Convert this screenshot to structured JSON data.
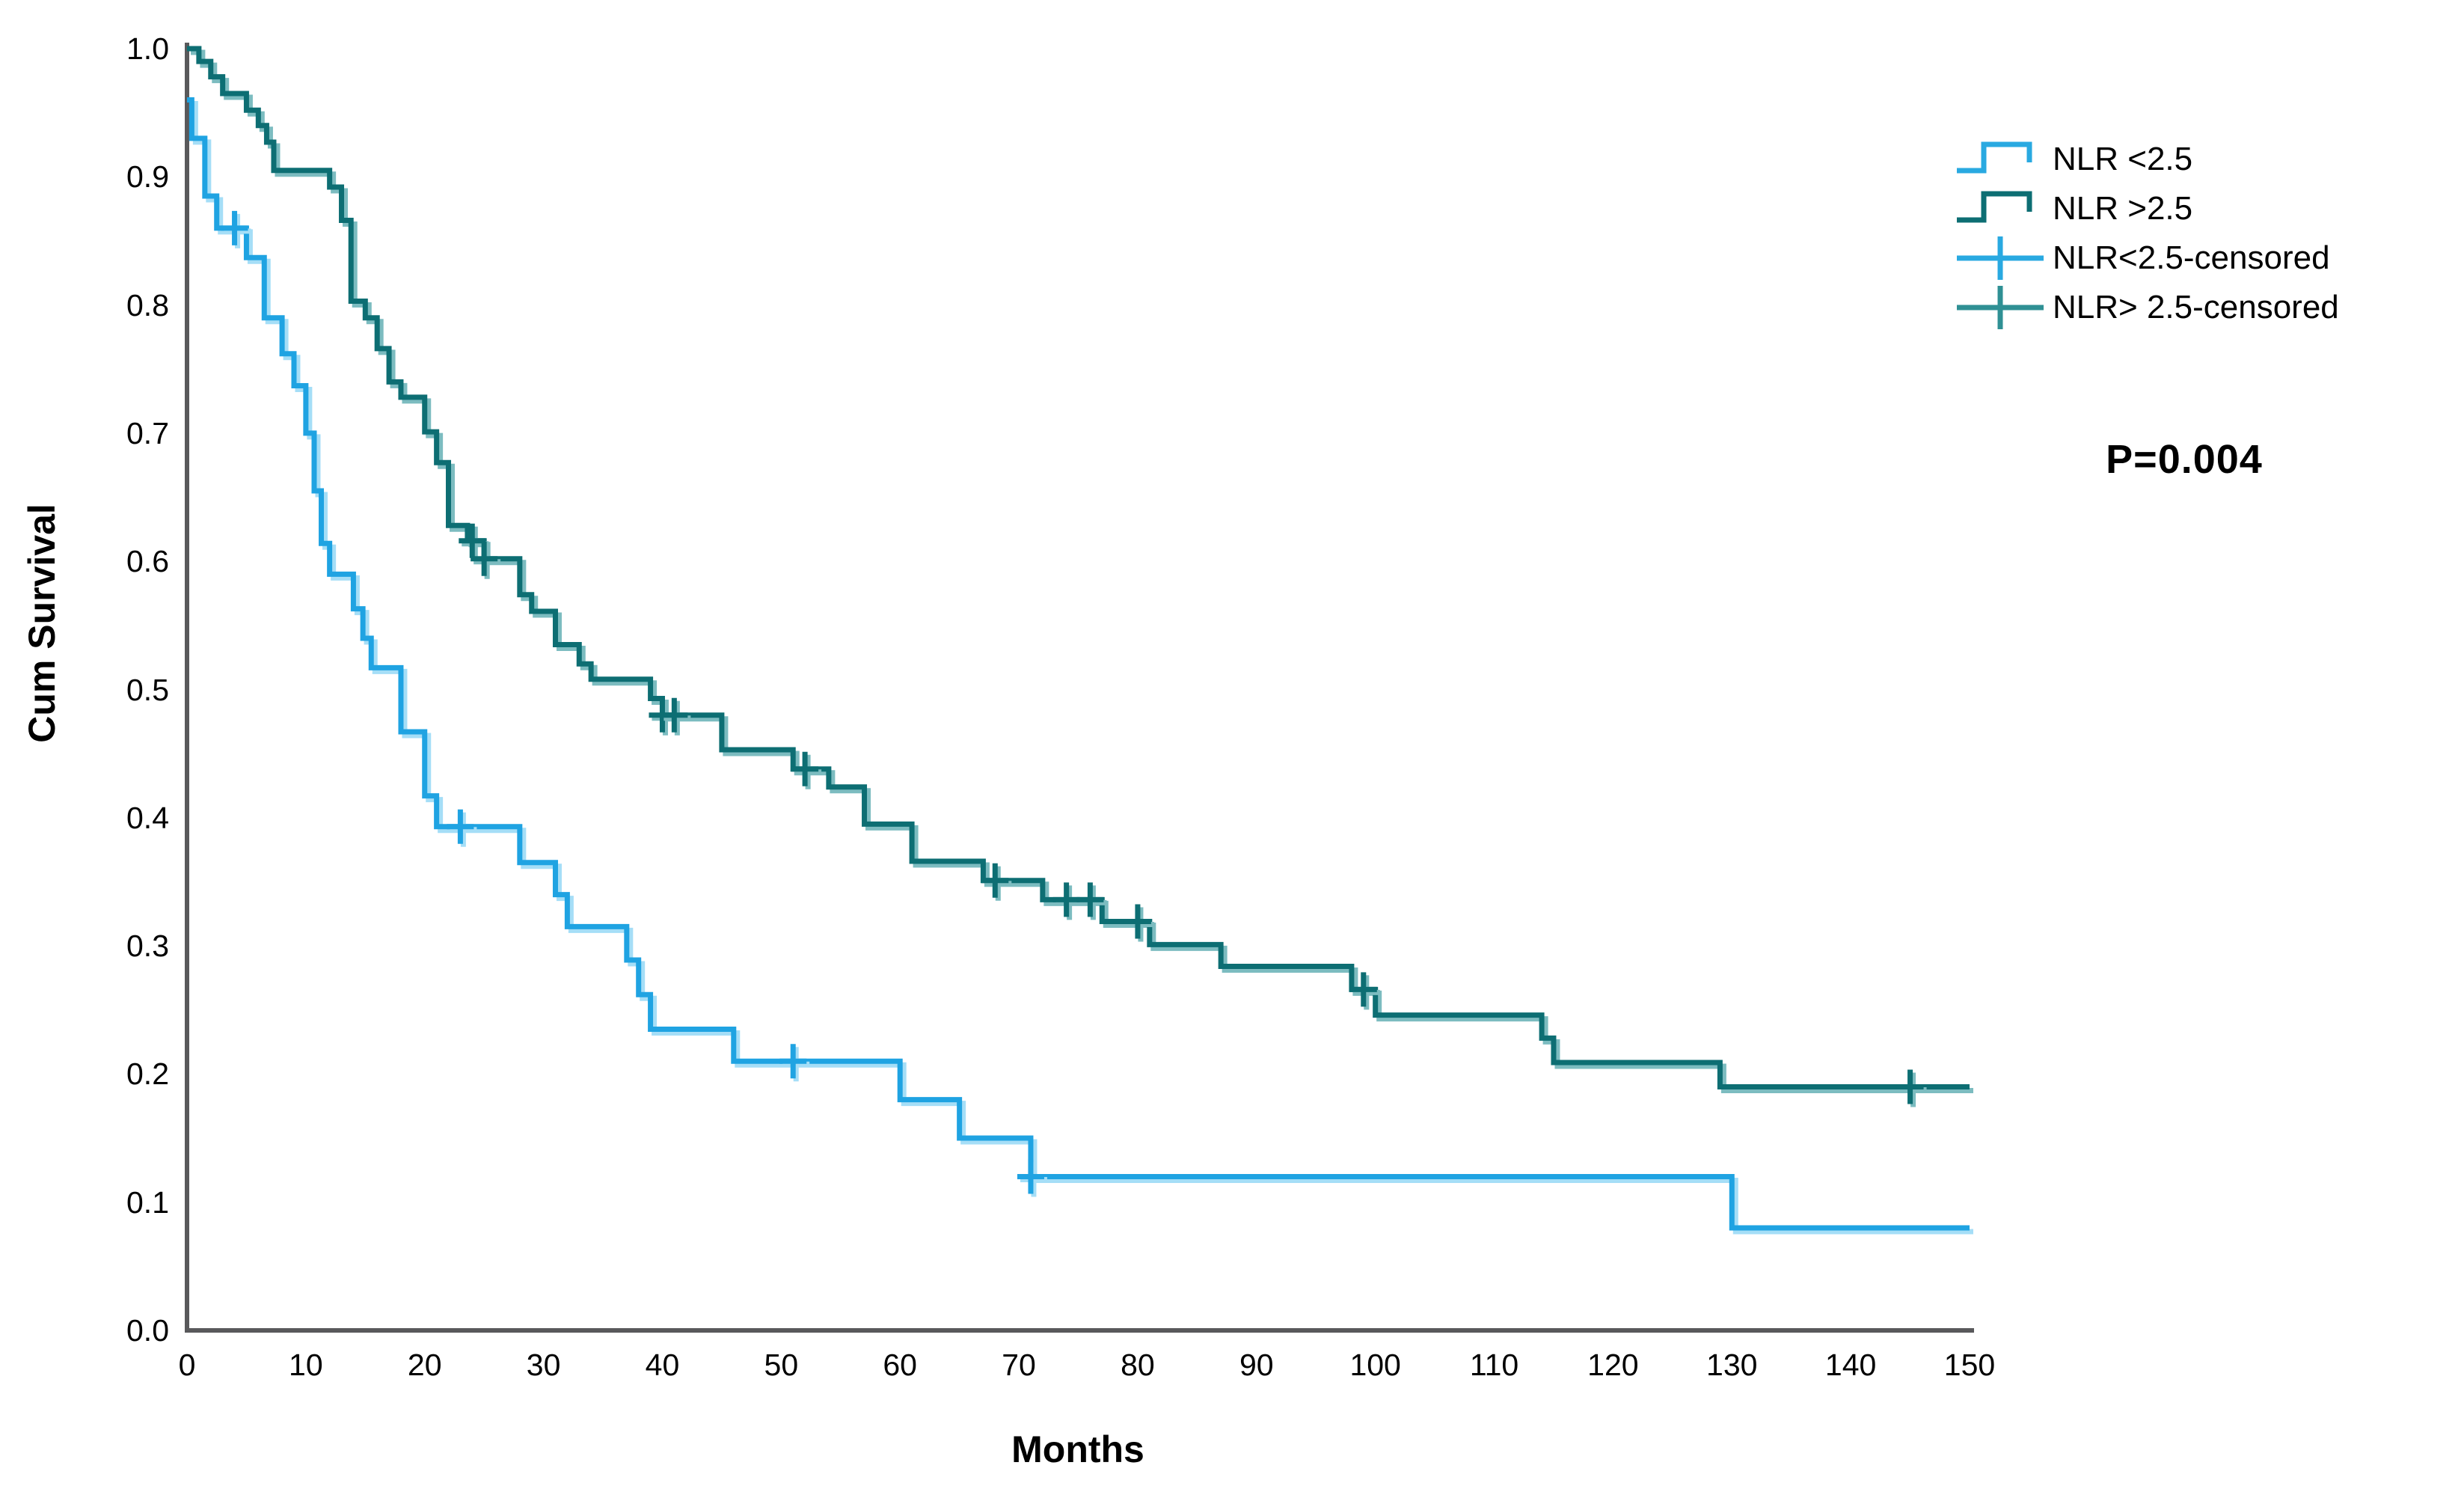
{
  "colors": {
    "axis": "#59595b",
    "text": "#000000",
    "background": "#ffffff"
  },
  "chart_data": {
    "type": "line",
    "subtype": "kaplan-meier-step",
    "title": "",
    "xlabel": "Months",
    "ylabel": "Cum Survival",
    "xlim": [
      0,
      150
    ],
    "ylim": [
      0.0,
      1.0
    ],
    "x_ticks": [
      0,
      10,
      20,
      30,
      40,
      50,
      60,
      70,
      80,
      90,
      100,
      110,
      120,
      130,
      140,
      150
    ],
    "y_ticks": [
      0.0,
      0.1,
      0.2,
      0.3,
      0.4,
      0.5,
      0.6,
      0.7,
      0.8,
      0.9,
      1.0
    ],
    "grid": false,
    "legend_position": "top-right",
    "annotation": "P=0.004",
    "legend_entries": [
      "NLR <2.5",
      "NLR >2.5",
      "NLR<2.5-censored",
      "NLR> 2.5-censored"
    ],
    "legend_sample_colors": [
      "#29a9e1",
      "#0d6e73",
      "#29a9e1",
      "#2f9094"
    ],
    "series": [
      {
        "name": "NLR <2.5",
        "color": "#1fa3e2",
        "halo": "#a5def7",
        "step_points": [
          [
            0,
            0.96
          ],
          [
            0.4,
            0.93
          ],
          [
            1.5,
            0.885
          ],
          [
            2.5,
            0.86
          ],
          [
            5,
            0.837
          ],
          [
            6.5,
            0.79
          ],
          [
            8,
            0.762
          ],
          [
            9,
            0.737
          ],
          [
            10,
            0.7
          ],
          [
            10.7,
            0.655
          ],
          [
            11.3,
            0.614
          ],
          [
            12,
            0.59
          ],
          [
            14,
            0.563
          ],
          [
            14.8,
            0.54
          ],
          [
            15.5,
            0.517
          ],
          [
            18,
            0.467
          ],
          [
            20,
            0.417
          ],
          [
            21,
            0.393
          ],
          [
            28,
            0.365
          ],
          [
            31,
            0.34
          ],
          [
            32,
            0.315
          ],
          [
            37,
            0.289
          ],
          [
            38,
            0.262
          ],
          [
            39,
            0.235
          ],
          [
            46,
            0.21
          ],
          [
            60,
            0.18
          ],
          [
            65,
            0.15
          ],
          [
            71,
            0.12
          ],
          [
            130,
            0.08
          ]
        ],
        "censored": [
          [
            4,
            0.86
          ],
          [
            23,
            0.393
          ],
          [
            51,
            0.21
          ],
          [
            71,
            0.12
          ]
        ]
      },
      {
        "name": "NLR >2.5",
        "color": "#0d6e73",
        "halo": "#7cbcc0",
        "step_points": [
          [
            0,
            1.0
          ],
          [
            1,
            0.99
          ],
          [
            2,
            0.978
          ],
          [
            3,
            0.965
          ],
          [
            5,
            0.952
          ],
          [
            6,
            0.94
          ],
          [
            6.7,
            0.927
          ],
          [
            7.3,
            0.905
          ],
          [
            12,
            0.892
          ],
          [
            13,
            0.866
          ],
          [
            13.8,
            0.803
          ],
          [
            15,
            0.79
          ],
          [
            16,
            0.766
          ],
          [
            17,
            0.74
          ],
          [
            18,
            0.728
          ],
          [
            20,
            0.701
          ],
          [
            21,
            0.677
          ],
          [
            22,
            0.628
          ],
          [
            23.6,
            0.616
          ],
          [
            25,
            0.602
          ],
          [
            28,
            0.574
          ],
          [
            29,
            0.561
          ],
          [
            31,
            0.535
          ],
          [
            33,
            0.52
          ],
          [
            34,
            0.508
          ],
          [
            39,
            0.493
          ],
          [
            40,
            0.48
          ],
          [
            45,
            0.453
          ],
          [
            51,
            0.438
          ],
          [
            54,
            0.424
          ],
          [
            57,
            0.395
          ],
          [
            61,
            0.366
          ],
          [
            67,
            0.351
          ],
          [
            72,
            0.336
          ],
          [
            77,
            0.319
          ],
          [
            81,
            0.301
          ],
          [
            87,
            0.284
          ],
          [
            98,
            0.266
          ],
          [
            100,
            0.246
          ],
          [
            114,
            0.228
          ],
          [
            115,
            0.209
          ],
          [
            129,
            0.19
          ]
        ],
        "censored": [
          [
            24,
            0.616
          ],
          [
            25,
            0.602
          ],
          [
            40,
            0.48
          ],
          [
            41,
            0.48
          ],
          [
            52,
            0.438
          ],
          [
            68,
            0.351
          ],
          [
            74,
            0.336
          ],
          [
            76,
            0.336
          ],
          [
            80,
            0.319
          ],
          [
            99,
            0.266
          ],
          [
            145,
            0.19
          ]
        ]
      }
    ]
  }
}
